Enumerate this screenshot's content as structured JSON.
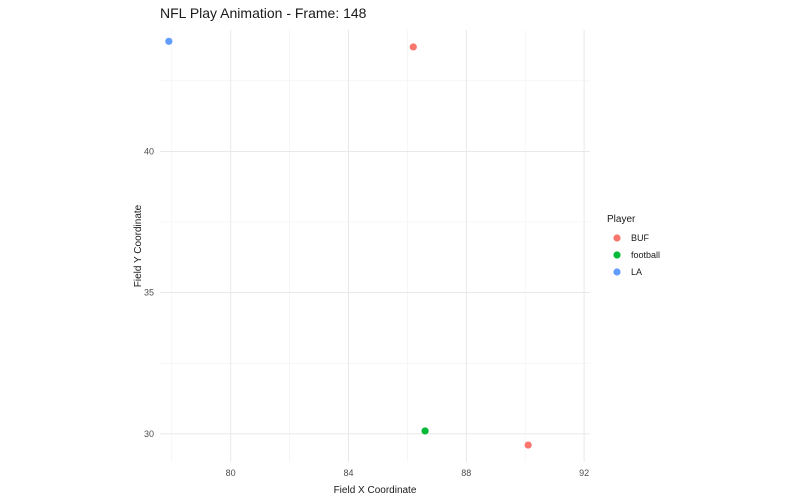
{
  "chart_data": {
    "type": "scatter",
    "title": "NFL Play Animation - Frame: 148",
    "xlabel": "Field X Coordinate",
    "ylabel": "Field Y Coordinate",
    "xlim": [
      77.6,
      92.2
    ],
    "ylim": [
      29.0,
      44.3
    ],
    "xticks": [
      80,
      84,
      88,
      92
    ],
    "yticks": [
      30,
      35,
      40
    ],
    "grid": true,
    "legend": {
      "title": "Player",
      "position": "right"
    },
    "series": [
      {
        "name": "BUF",
        "color": "#F8766D",
        "points": [
          {
            "x": 86.2,
            "y": 43.7
          },
          {
            "x": 90.1,
            "y": 29.6
          }
        ]
      },
      {
        "name": "football",
        "color": "#00BA38",
        "points": [
          {
            "x": 86.6,
            "y": 30.1
          }
        ]
      },
      {
        "name": "LA",
        "color": "#619CFF",
        "points": [
          {
            "x": 77.9,
            "y": 43.9
          }
        ]
      }
    ]
  }
}
